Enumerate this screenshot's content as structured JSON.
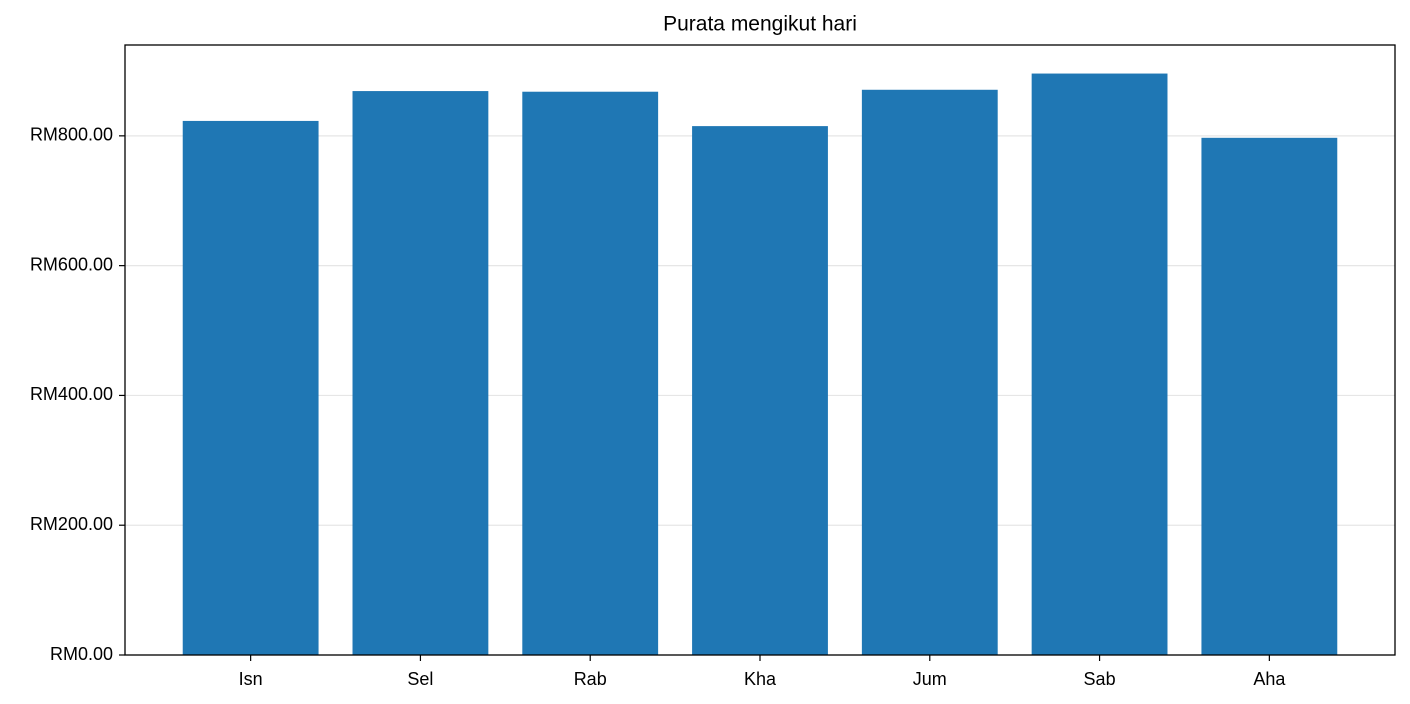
{
  "chart_data": {
    "type": "bar",
    "title": "Purata mengikut hari",
    "categories": [
      "Isn",
      "Sel",
      "Rab",
      "Kha",
      "Jum",
      "Sab",
      "Aha"
    ],
    "values": [
      823,
      869,
      868,
      815,
      871,
      896,
      797
    ],
    "color": "#1f77b4",
    "ylim": [
      0,
      940
    ],
    "yticks": [
      {
        "value": 0,
        "label": "RM0.00"
      },
      {
        "value": 200,
        "label": "RM200.00"
      },
      {
        "value": 400,
        "label": "RM400.00"
      },
      {
        "value": 600,
        "label": "RM600.00"
      },
      {
        "value": 800,
        "label": "RM800.00"
      }
    ],
    "grid": true
  }
}
